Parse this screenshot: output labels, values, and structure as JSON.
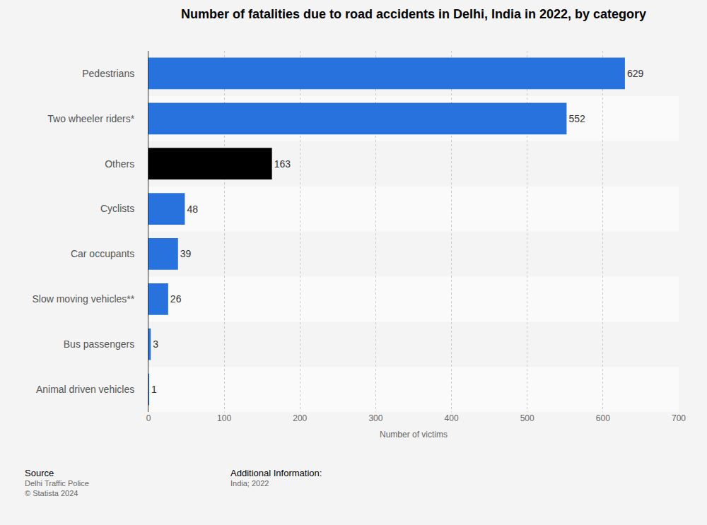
{
  "chart_data": {
    "type": "bar",
    "orientation": "horizontal",
    "title": "Number of fatalities due to road accidents in Delhi, India in 2022, by category",
    "xlabel": "Number of victims",
    "categories": [
      "Pedestrians",
      "Two wheeler riders*",
      "Others",
      "Cyclists",
      "Car occupants",
      "Slow moving vehicles**",
      "Bus passengers",
      "Animal driven vehicles"
    ],
    "values": [
      629,
      552,
      163,
      48,
      39,
      26,
      3,
      1
    ],
    "colors": [
      "#2872dd",
      "#2872dd",
      "#000000",
      "#2872dd",
      "#2872dd",
      "#2872dd",
      "#2872dd",
      "#2872dd"
    ],
    "xlim": [
      0,
      700
    ],
    "xticks": [
      0,
      100,
      200,
      300,
      400,
      500,
      600,
      700
    ],
    "grid": true,
    "data_labels": true,
    "footer": {
      "source_label": "Source",
      "source_lines": [
        "Delhi Traffic Police",
        "© Statista 2024"
      ],
      "info_label": "Additional Information:",
      "info_lines": [
        "India; 2022"
      ]
    }
  }
}
